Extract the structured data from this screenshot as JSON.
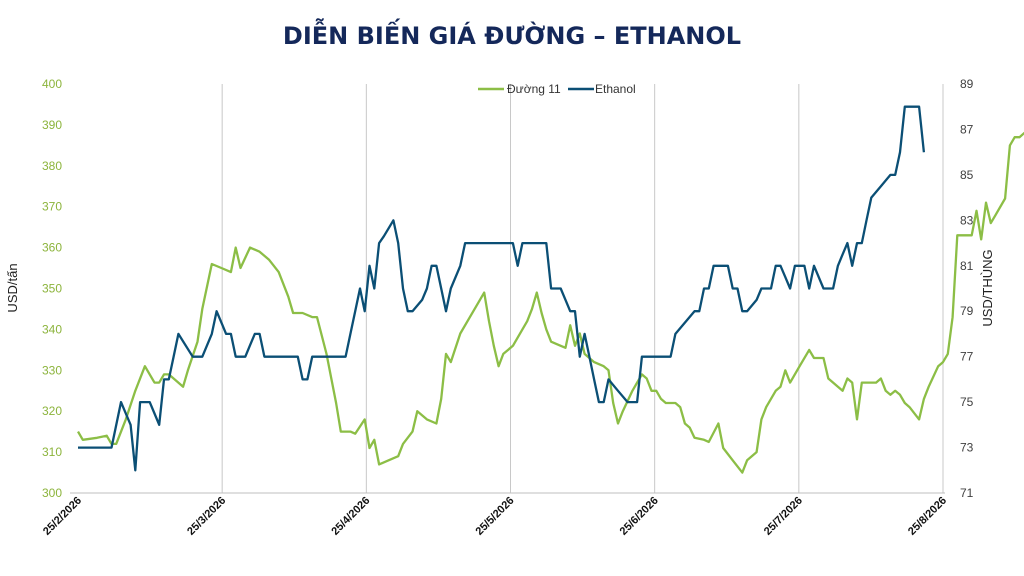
{
  "chart_data": {
    "type": "line",
    "title": "DIỄN BIẾN GIÁ ĐƯỜNG – ETHANOL",
    "ylabel_left": "USD/tấn",
    "ylabel_right": "USD/THÙNG",
    "y_left_ticks": [
      "300",
      "310",
      "320",
      "330",
      "340",
      "350",
      "360",
      "370",
      "380",
      "390",
      "400"
    ],
    "y_right_ticks": [
      "71",
      "73",
      "75",
      "77",
      "79",
      "81",
      "83",
      "85",
      "87",
      "89"
    ],
    "ylim_left": [
      300,
      400
    ],
    "ylim_right": [
      71,
      89
    ],
    "x_ticks": [
      "25/2/2026",
      "25/3/2026",
      "25/4/2026",
      "25/5/2026",
      "25/6/2026",
      "25/7/2026",
      "25/8/2026"
    ],
    "xlim_days": [
      0,
      181
    ],
    "grid": "vertical at x ticks",
    "legend_position": "top-center",
    "colors": {
      "sugar": "#8cbe46",
      "ethanol": "#0b4f75",
      "title": "#14285a"
    },
    "series": [
      {
        "name": "Đường 11",
        "axis": "left",
        "points": [
          [
            0,
            315
          ],
          [
            1,
            313
          ],
          [
            4,
            313.5
          ],
          [
            6,
            314
          ],
          [
            7,
            312
          ],
          [
            8,
            312
          ],
          [
            10,
            318
          ],
          [
            12,
            325
          ],
          [
            14,
            331
          ],
          [
            16,
            327
          ],
          [
            17,
            327
          ],
          [
            18,
            329
          ],
          [
            19,
            329
          ],
          [
            20,
            328
          ],
          [
            22,
            326
          ],
          [
            23,
            330
          ],
          [
            25,
            337
          ],
          [
            26,
            345
          ],
          [
            28,
            356
          ],
          [
            30,
            355
          ],
          [
            32,
            354
          ],
          [
            33,
            360
          ],
          [
            34,
            355
          ],
          [
            36,
            360
          ],
          [
            38,
            359
          ],
          [
            40,
            357
          ],
          [
            42,
            354
          ],
          [
            44,
            348
          ],
          [
            45,
            344
          ],
          [
            47,
            344
          ],
          [
            49,
            343
          ],
          [
            50,
            343
          ],
          [
            52,
            334
          ],
          [
            54,
            322
          ],
          [
            55,
            315
          ],
          [
            57,
            315
          ],
          [
            58,
            314.5
          ],
          [
            60,
            318
          ],
          [
            61,
            311
          ],
          [
            62,
            313
          ],
          [
            63,
            307
          ],
          [
            65,
            308
          ],
          [
            67,
            309
          ],
          [
            68,
            312
          ],
          [
            70,
            315
          ],
          [
            71,
            320
          ],
          [
            73,
            318
          ],
          [
            75,
            317
          ],
          [
            76,
            323
          ],
          [
            77,
            334
          ],
          [
            78,
            332
          ],
          [
            80,
            339
          ],
          [
            82,
            343
          ],
          [
            84,
            347
          ],
          [
            85,
            349
          ],
          [
            86,
            342
          ],
          [
            87,
            336
          ],
          [
            88,
            331
          ],
          [
            89,
            334
          ],
          [
            91,
            336
          ],
          [
            93,
            340
          ],
          [
            94,
            342
          ],
          [
            95,
            345
          ],
          [
            96,
            349
          ],
          [
            97,
            344
          ],
          [
            98,
            340
          ],
          [
            99,
            337
          ],
          [
            101,
            336
          ],
          [
            102,
            335.5
          ],
          [
            103,
            341
          ],
          [
            104,
            336
          ],
          [
            105,
            339
          ],
          [
            106,
            334
          ],
          [
            108,
            332
          ],
          [
            110,
            331
          ],
          [
            111,
            330
          ],
          [
            112,
            322
          ],
          [
            113,
            317
          ],
          [
            114,
            320
          ],
          [
            116,
            325
          ],
          [
            118,
            329
          ],
          [
            119,
            328
          ],
          [
            120,
            325
          ],
          [
            121,
            325
          ],
          [
            122,
            323
          ],
          [
            123,
            322
          ],
          [
            125,
            322
          ],
          [
            126,
            321
          ],
          [
            127,
            317
          ],
          [
            128,
            316
          ],
          [
            129,
            313.5
          ],
          [
            131,
            313
          ],
          [
            132,
            312.5
          ],
          [
            134,
            317
          ],
          [
            135,
            311
          ],
          [
            137,
            308
          ],
          [
            139,
            305
          ],
          [
            140,
            308
          ],
          [
            142,
            310
          ],
          [
            143,
            318
          ],
          [
            144,
            321
          ],
          [
            146,
            325
          ],
          [
            147,
            326
          ],
          [
            148,
            330
          ],
          [
            149,
            327
          ],
          [
            151,
            331
          ],
          [
            153,
            335
          ],
          [
            154,
            333
          ],
          [
            156,
            333
          ],
          [
            157,
            328
          ],
          [
            159,
            326
          ],
          [
            160,
            325
          ],
          [
            161,
            328
          ],
          [
            162,
            327
          ],
          [
            163,
            318
          ],
          [
            164,
            327
          ],
          [
            167,
            327
          ],
          [
            168,
            328
          ],
          [
            169,
            325
          ],
          [
            170,
            324
          ],
          [
            171,
            325
          ],
          [
            172,
            324
          ],
          [
            173,
            322
          ],
          [
            174,
            321
          ],
          [
            176,
            318
          ],
          [
            177,
            323
          ],
          [
            178,
            326
          ],
          [
            180,
            331
          ],
          [
            181,
            332
          ],
          [
            182,
            334
          ],
          [
            183,
            343
          ],
          [
            184,
            363
          ],
          [
            187,
            363
          ],
          [
            188,
            369
          ],
          [
            189,
            362
          ],
          [
            190,
            371
          ],
          [
            191,
            366
          ],
          [
            192,
            368
          ],
          [
            194,
            372
          ],
          [
            195,
            385
          ],
          [
            196,
            387
          ],
          [
            197,
            387
          ],
          [
            198,
            388
          ],
          [
            200,
            389
          ],
          [
            201,
            389.5
          ],
          [
            202,
            380.5
          ]
        ]
      },
      {
        "name": "Ethanol",
        "axis": "right",
        "points": [
          [
            0,
            73
          ],
          [
            6,
            73
          ],
          [
            7,
            73
          ],
          [
            9,
            75
          ],
          [
            11,
            74
          ],
          [
            12,
            72
          ],
          [
            13,
            75
          ],
          [
            15,
            75
          ],
          [
            16,
            74.5
          ],
          [
            17,
            74
          ],
          [
            18,
            76
          ],
          [
            19,
            76
          ],
          [
            20,
            77
          ],
          [
            21,
            78
          ],
          [
            24,
            77
          ],
          [
            26,
            77
          ],
          [
            28,
            78
          ],
          [
            29,
            79
          ],
          [
            30,
            78.5
          ],
          [
            31,
            78
          ],
          [
            32,
            78
          ],
          [
            33,
            77
          ],
          [
            35,
            77
          ],
          [
            36,
            77.5
          ],
          [
            37,
            78
          ],
          [
            38,
            78
          ],
          [
            39,
            77
          ],
          [
            42,
            77
          ],
          [
            44,
            77
          ],
          [
            46,
            77
          ],
          [
            47,
            76
          ],
          [
            48,
            76
          ],
          [
            49,
            77
          ],
          [
            55,
            77
          ],
          [
            56,
            77
          ],
          [
            57,
            78
          ],
          [
            58,
            79
          ],
          [
            59,
            80
          ],
          [
            60,
            79
          ],
          [
            61,
            81
          ],
          [
            62,
            80
          ],
          [
            63,
            82
          ],
          [
            64,
            82.3
          ],
          [
            66,
            83
          ],
          [
            67,
            82
          ],
          [
            68,
            80
          ],
          [
            69,
            79
          ],
          [
            70,
            79
          ],
          [
            72,
            79.5
          ],
          [
            73,
            80
          ],
          [
            74,
            81
          ],
          [
            75,
            81
          ],
          [
            76,
            80
          ],
          [
            77,
            79
          ],
          [
            78,
            80
          ],
          [
            80,
            81
          ],
          [
            81,
            82
          ],
          [
            82,
            82
          ],
          [
            91,
            82
          ],
          [
            92,
            81
          ],
          [
            93,
            82
          ],
          [
            94,
            82
          ],
          [
            98,
            82
          ],
          [
            99,
            80
          ],
          [
            100,
            80
          ],
          [
            101,
            80
          ],
          [
            102,
            79.5
          ],
          [
            103,
            79
          ],
          [
            104,
            79
          ],
          [
            105,
            77
          ],
          [
            106,
            78
          ],
          [
            107,
            77
          ],
          [
            108,
            76
          ],
          [
            109,
            75
          ],
          [
            110,
            75
          ],
          [
            111,
            76
          ],
          [
            113,
            75.5
          ],
          [
            115,
            75
          ],
          [
            117,
            75
          ],
          [
            118,
            77
          ],
          [
            124,
            77
          ],
          [
            125,
            78
          ],
          [
            127,
            78.5
          ],
          [
            129,
            79
          ],
          [
            130,
            79
          ],
          [
            131,
            80
          ],
          [
            132,
            80
          ],
          [
            133,
            81
          ],
          [
            136,
            81
          ],
          [
            137,
            80
          ],
          [
            138,
            80
          ],
          [
            139,
            79
          ],
          [
            140,
            79
          ],
          [
            142,
            79.5
          ],
          [
            143,
            80
          ],
          [
            145,
            80
          ],
          [
            146,
            81
          ],
          [
            147,
            81
          ],
          [
            148,
            80.5
          ],
          [
            149,
            80
          ],
          [
            150,
            81
          ],
          [
            152,
            81
          ],
          [
            153,
            80
          ],
          [
            154,
            81
          ],
          [
            156,
            80
          ],
          [
            157,
            80
          ],
          [
            158,
            80
          ],
          [
            159,
            81
          ],
          [
            160,
            81.5
          ],
          [
            161,
            82
          ],
          [
            162,
            81
          ],
          [
            163,
            82
          ],
          [
            164,
            82
          ],
          [
            165,
            83
          ],
          [
            166,
            84
          ],
          [
            168,
            84.5
          ],
          [
            170,
            85
          ],
          [
            171,
            85
          ],
          [
            172,
            86
          ],
          [
            173,
            88
          ],
          [
            175,
            88
          ],
          [
            176,
            88
          ],
          [
            177,
            86
          ]
        ]
      }
    ]
  }
}
